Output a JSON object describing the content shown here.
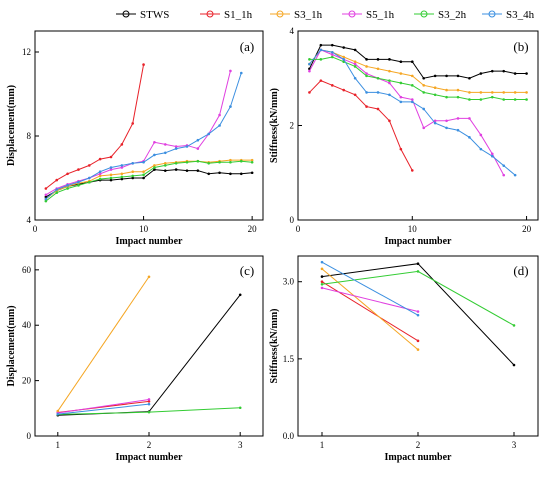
{
  "legend": [
    {
      "name": "STWS",
      "color": "#000000"
    },
    {
      "name": "S1_1h",
      "color": "#e8222a"
    },
    {
      "name": "S3_1h",
      "color": "#f5a623"
    },
    {
      "name": "S5_1h",
      "color": "#e040e0"
    },
    {
      "name": "S3_2h",
      "color": "#33cc33"
    },
    {
      "name": "S3_4h",
      "color": "#3b8fe0"
    }
  ],
  "chart_data": [
    {
      "type": "line",
      "panel": "(a)",
      "xlabel": "Impact number",
      "ylabel": "Displacement(mm)",
      "xlim": [
        0,
        21
      ],
      "ylim": [
        4,
        13
      ],
      "xticks": [
        0,
        10,
        20
      ],
      "yticks": [
        4,
        8,
        12
      ],
      "series": [
        {
          "name": "STWS",
          "color": "#000000",
          "x": [
            1,
            2,
            3,
            4,
            5,
            6,
            7,
            8,
            9,
            10,
            11,
            12,
            13,
            14,
            15,
            16,
            17,
            18,
            19,
            20
          ],
          "y": [
            5.1,
            5.4,
            5.6,
            5.7,
            5.8,
            5.9,
            5.9,
            5.95,
            6.0,
            6.0,
            6.4,
            6.35,
            6.4,
            6.35,
            6.35,
            6.2,
            6.25,
            6.2,
            6.2,
            6.25
          ]
        },
        {
          "name": "S1_1h",
          "color": "#e8222a",
          "x": [
            1,
            2,
            3,
            4,
            5,
            6,
            7,
            8,
            9,
            10
          ],
          "y": [
            5.5,
            5.9,
            6.2,
            6.4,
            6.6,
            6.9,
            7.0,
            7.6,
            8.6,
            11.4
          ]
        },
        {
          "name": "S3_1h",
          "color": "#f5a623",
          "x": [
            1,
            2,
            3,
            4,
            5,
            6,
            7,
            8,
            9,
            10,
            11,
            12,
            13,
            14,
            15,
            16,
            17,
            18,
            19,
            20
          ],
          "y": [
            5.0,
            5.4,
            5.6,
            5.75,
            5.85,
            6.1,
            6.15,
            6.2,
            6.3,
            6.3,
            6.6,
            6.7,
            6.75,
            6.8,
            6.8,
            6.75,
            6.8,
            6.85,
            6.85,
            6.85
          ]
        },
        {
          "name": "S5_1h",
          "color": "#e040e0",
          "x": [
            1,
            2,
            3,
            4,
            5,
            6,
            7,
            8,
            9,
            10,
            11,
            12,
            13,
            14,
            15,
            16,
            17,
            18
          ],
          "y": [
            5.2,
            5.5,
            5.7,
            5.85,
            6.0,
            6.2,
            6.4,
            6.5,
            6.7,
            6.8,
            7.7,
            7.6,
            7.5,
            7.55,
            7.4,
            8.1,
            9.0,
            11.1
          ]
        },
        {
          "name": "S3_2h",
          "color": "#33cc33",
          "x": [
            1,
            2,
            3,
            4,
            5,
            6,
            7,
            8,
            9,
            10,
            11,
            12,
            13,
            14,
            15,
            16,
            17,
            18,
            19,
            20
          ],
          "y": [
            4.9,
            5.3,
            5.5,
            5.65,
            5.8,
            5.95,
            6.0,
            6.05,
            6.1,
            6.15,
            6.5,
            6.6,
            6.7,
            6.75,
            6.8,
            6.7,
            6.75,
            6.75,
            6.8,
            6.75
          ]
        },
        {
          "name": "S3_4h",
          "color": "#3b8fe0",
          "x": [
            1,
            2,
            3,
            4,
            5,
            6,
            7,
            8,
            9,
            10,
            11,
            12,
            13,
            14,
            15,
            16,
            17,
            18,
            19
          ],
          "y": [
            5.0,
            5.45,
            5.65,
            5.8,
            6.0,
            6.3,
            6.5,
            6.6,
            6.7,
            6.75,
            7.1,
            7.2,
            7.4,
            7.5,
            7.8,
            8.1,
            8.5,
            9.4,
            11.0
          ]
        }
      ]
    },
    {
      "type": "line",
      "panel": "(b)",
      "xlabel": "Impact number",
      "ylabel": "Stiffness(kN/mm)",
      "xlim": [
        0,
        21
      ],
      "ylim": [
        0,
        4
      ],
      "xticks": [
        0,
        10,
        20
      ],
      "yticks": [
        0,
        2,
        4
      ],
      "series": [
        {
          "name": "STWS",
          "color": "#000000",
          "x": [
            1,
            2,
            3,
            4,
            5,
            6,
            7,
            8,
            9,
            10,
            11,
            12,
            13,
            14,
            15,
            16,
            17,
            18,
            19,
            20
          ],
          "y": [
            3.2,
            3.7,
            3.7,
            3.65,
            3.6,
            3.4,
            3.4,
            3.4,
            3.35,
            3.35,
            3.0,
            3.05,
            3.05,
            3.05,
            3.0,
            3.1,
            3.15,
            3.15,
            3.1,
            3.1
          ]
        },
        {
          "name": "S1_1h",
          "color": "#e8222a",
          "x": [
            1,
            2,
            3,
            4,
            5,
            6,
            7,
            8,
            9,
            10
          ],
          "y": [
            2.7,
            2.95,
            2.85,
            2.75,
            2.65,
            2.4,
            2.35,
            2.1,
            1.5,
            1.05
          ]
        },
        {
          "name": "S3_1h",
          "color": "#f5a623",
          "x": [
            1,
            2,
            3,
            4,
            5,
            6,
            7,
            8,
            9,
            10,
            11,
            12,
            13,
            14,
            15,
            16,
            17,
            18,
            19,
            20
          ],
          "y": [
            3.3,
            3.6,
            3.55,
            3.45,
            3.35,
            3.25,
            3.2,
            3.15,
            3.1,
            3.05,
            2.85,
            2.8,
            2.75,
            2.75,
            2.7,
            2.7,
            2.7,
            2.7,
            2.7,
            2.7
          ]
        },
        {
          "name": "S5_1h",
          "color": "#e040e0",
          "x": [
            1,
            2,
            3,
            4,
            5,
            6,
            7,
            8,
            9,
            10,
            11,
            12,
            13,
            14,
            15,
            16,
            17,
            18
          ],
          "y": [
            3.15,
            3.6,
            3.5,
            3.4,
            3.3,
            3.1,
            3.0,
            2.9,
            2.6,
            2.55,
            1.95,
            2.1,
            2.1,
            2.15,
            2.15,
            1.8,
            1.4,
            0.95
          ]
        },
        {
          "name": "S3_2h",
          "color": "#33cc33",
          "x": [
            1,
            2,
            3,
            4,
            5,
            6,
            7,
            8,
            9,
            10,
            11,
            12,
            13,
            14,
            15,
            16,
            17,
            18,
            19,
            20
          ],
          "y": [
            3.4,
            3.4,
            3.45,
            3.35,
            3.25,
            3.05,
            3.0,
            2.95,
            2.9,
            2.85,
            2.7,
            2.65,
            2.6,
            2.6,
            2.55,
            2.55,
            2.6,
            2.55,
            2.55,
            2.55
          ]
        },
        {
          "name": "S3_4h",
          "color": "#3b8fe0",
          "x": [
            1,
            2,
            3,
            4,
            5,
            6,
            7,
            8,
            9,
            10,
            11,
            12,
            13,
            14,
            15,
            16,
            17,
            18,
            19
          ],
          "y": [
            3.3,
            3.6,
            3.55,
            3.4,
            3.0,
            2.7,
            2.7,
            2.65,
            2.5,
            2.5,
            2.35,
            2.05,
            1.95,
            1.9,
            1.75,
            1.5,
            1.35,
            1.15,
            0.95
          ]
        }
      ]
    },
    {
      "type": "line",
      "panel": "(c)",
      "xlabel": "Impact number",
      "ylabel": "Displacement(mm)",
      "xlim": [
        0.75,
        3.25
      ],
      "ylim": [
        0,
        65
      ],
      "xticks": [
        1,
        2,
        3
      ],
      "yticks": [
        0,
        20,
        40,
        60
      ],
      "series": [
        {
          "name": "STWS",
          "color": "#000000",
          "x": [
            1,
            2,
            3
          ],
          "y": [
            7.5,
            8.8,
            51.0
          ]
        },
        {
          "name": "S1_1h",
          "color": "#e8222a",
          "x": [
            1,
            2
          ],
          "y": [
            8.5,
            12.5
          ]
        },
        {
          "name": "S3_1h",
          "color": "#f5a623",
          "x": [
            1,
            2
          ],
          "y": [
            9.0,
            57.5
          ]
        },
        {
          "name": "S5_1h",
          "color": "#e040e0",
          "x": [
            1,
            2
          ],
          "y": [
            8.3,
            13.2
          ]
        },
        {
          "name": "S3_2h",
          "color": "#33cc33",
          "x": [
            1,
            2,
            3
          ],
          "y": [
            7.8,
            8.6,
            10.2
          ]
        },
        {
          "name": "S3_4h",
          "color": "#3b8fe0",
          "x": [
            1,
            2
          ],
          "y": [
            7.9,
            11.5
          ]
        }
      ]
    },
    {
      "type": "line",
      "panel": "(d)",
      "xlabel": "Impact number",
      "ylabel": "Stiffness(kN/mm)",
      "xlim": [
        0.75,
        3.25
      ],
      "ylim": [
        0,
        3.5
      ],
      "xticks": [
        1,
        2,
        3
      ],
      "yticks": [
        0.0,
        1.5,
        3.0
      ],
      "yticklabels": [
        "0.0",
        "1.5",
        "3.0"
      ],
      "series": [
        {
          "name": "STWS",
          "color": "#000000",
          "x": [
            1,
            2,
            3
          ],
          "y": [
            3.1,
            3.35,
            1.38
          ]
        },
        {
          "name": "S1_1h",
          "color": "#e8222a",
          "x": [
            1,
            2
          ],
          "y": [
            3.0,
            1.85
          ]
        },
        {
          "name": "S3_1h",
          "color": "#f5a623",
          "x": [
            1,
            2
          ],
          "y": [
            3.25,
            1.68
          ]
        },
        {
          "name": "S5_1h",
          "color": "#e040e0",
          "x": [
            1,
            2
          ],
          "y": [
            2.88,
            2.42
          ]
        },
        {
          "name": "S3_2h",
          "color": "#33cc33",
          "x": [
            1,
            2,
            3
          ],
          "y": [
            2.95,
            3.2,
            2.15
          ]
        },
        {
          "name": "S3_4h",
          "color": "#3b8fe0",
          "x": [
            1,
            2
          ],
          "y": [
            3.38,
            2.35
          ]
        }
      ]
    }
  ]
}
